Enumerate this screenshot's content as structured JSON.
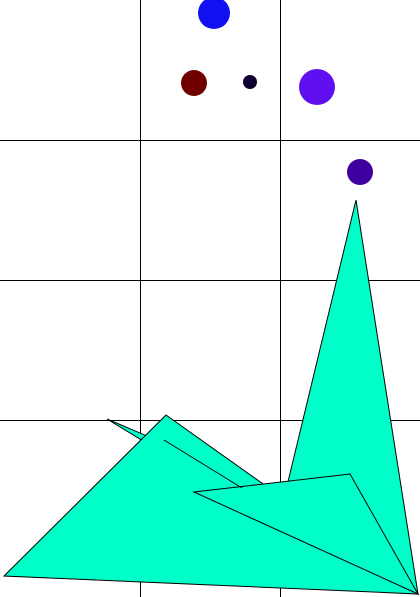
{
  "palette": {
    "background": "#ffffff",
    "grid_line": "#000000",
    "shape_fill": "#00ffc8",
    "shape_stroke": "#000000",
    "dot_blue": "#1010f0",
    "dot_maroon": "#700000",
    "dot_navy": "#100030",
    "dot_violet": "#6010f0",
    "dot_indigo": "#4000a0"
  },
  "dots": [
    {
      "name": "blue-dot",
      "color_key": "dot_blue"
    },
    {
      "name": "maroon-dot",
      "color_key": "dot_maroon"
    },
    {
      "name": "small-navy-dot",
      "color_key": "dot_navy"
    },
    {
      "name": "violet-dot",
      "color_key": "dot_violet"
    },
    {
      "name": "indigo-dot",
      "color_key": "dot_indigo"
    }
  ]
}
